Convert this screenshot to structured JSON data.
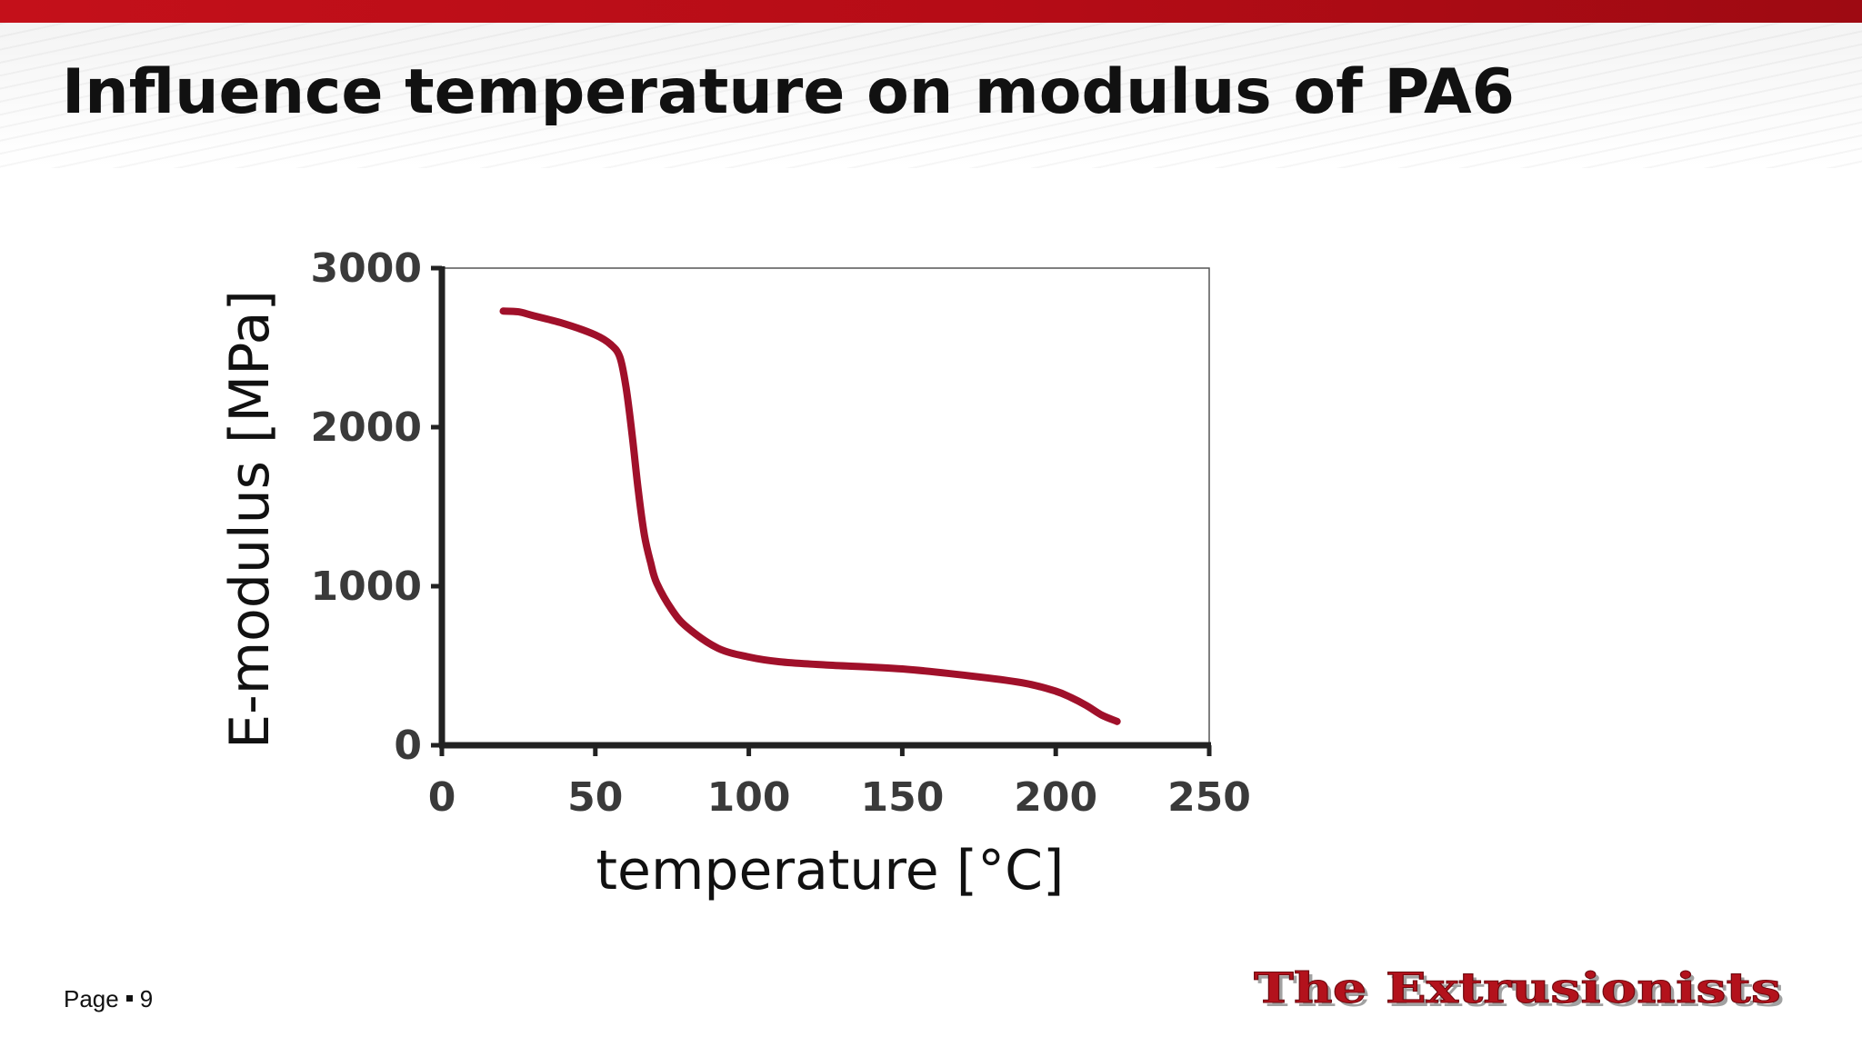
{
  "slide": {
    "title": "Influence temperature on modulus of PA6",
    "page_label": "Page",
    "page_number": "9",
    "brand": "The Extrusionists",
    "colors": {
      "top_bar": "#c4101a",
      "brand_text": "#b3121c"
    }
  },
  "chart_data": {
    "type": "line",
    "title": "",
    "xlabel": "temperature [°C]",
    "ylabel": "E-modulus [MPa]",
    "xlim": [
      0,
      250
    ],
    "ylim": [
      0,
      3000
    ],
    "x_ticks": [
      0,
      50,
      100,
      150,
      200,
      250
    ],
    "y_ticks": [
      0,
      1000,
      2000,
      3000
    ],
    "grid": false,
    "legend": "none",
    "series": [
      {
        "color": "#a0102a",
        "x": [
          20,
          25,
          30,
          40,
          50,
          55,
          58,
          60,
          62,
          64,
          66,
          68,
          70,
          75,
          80,
          90,
          100,
          110,
          125,
          150,
          175,
          190,
          200,
          205,
          210,
          215,
          220
        ],
        "y": [
          2730,
          2725,
          2700,
          2650,
          2580,
          2520,
          2440,
          2250,
          1950,
          1600,
          1320,
          1150,
          1020,
          850,
          740,
          610,
          555,
          525,
          505,
          480,
          430,
          390,
          340,
          300,
          250,
          190,
          150
        ]
      }
    ]
  }
}
